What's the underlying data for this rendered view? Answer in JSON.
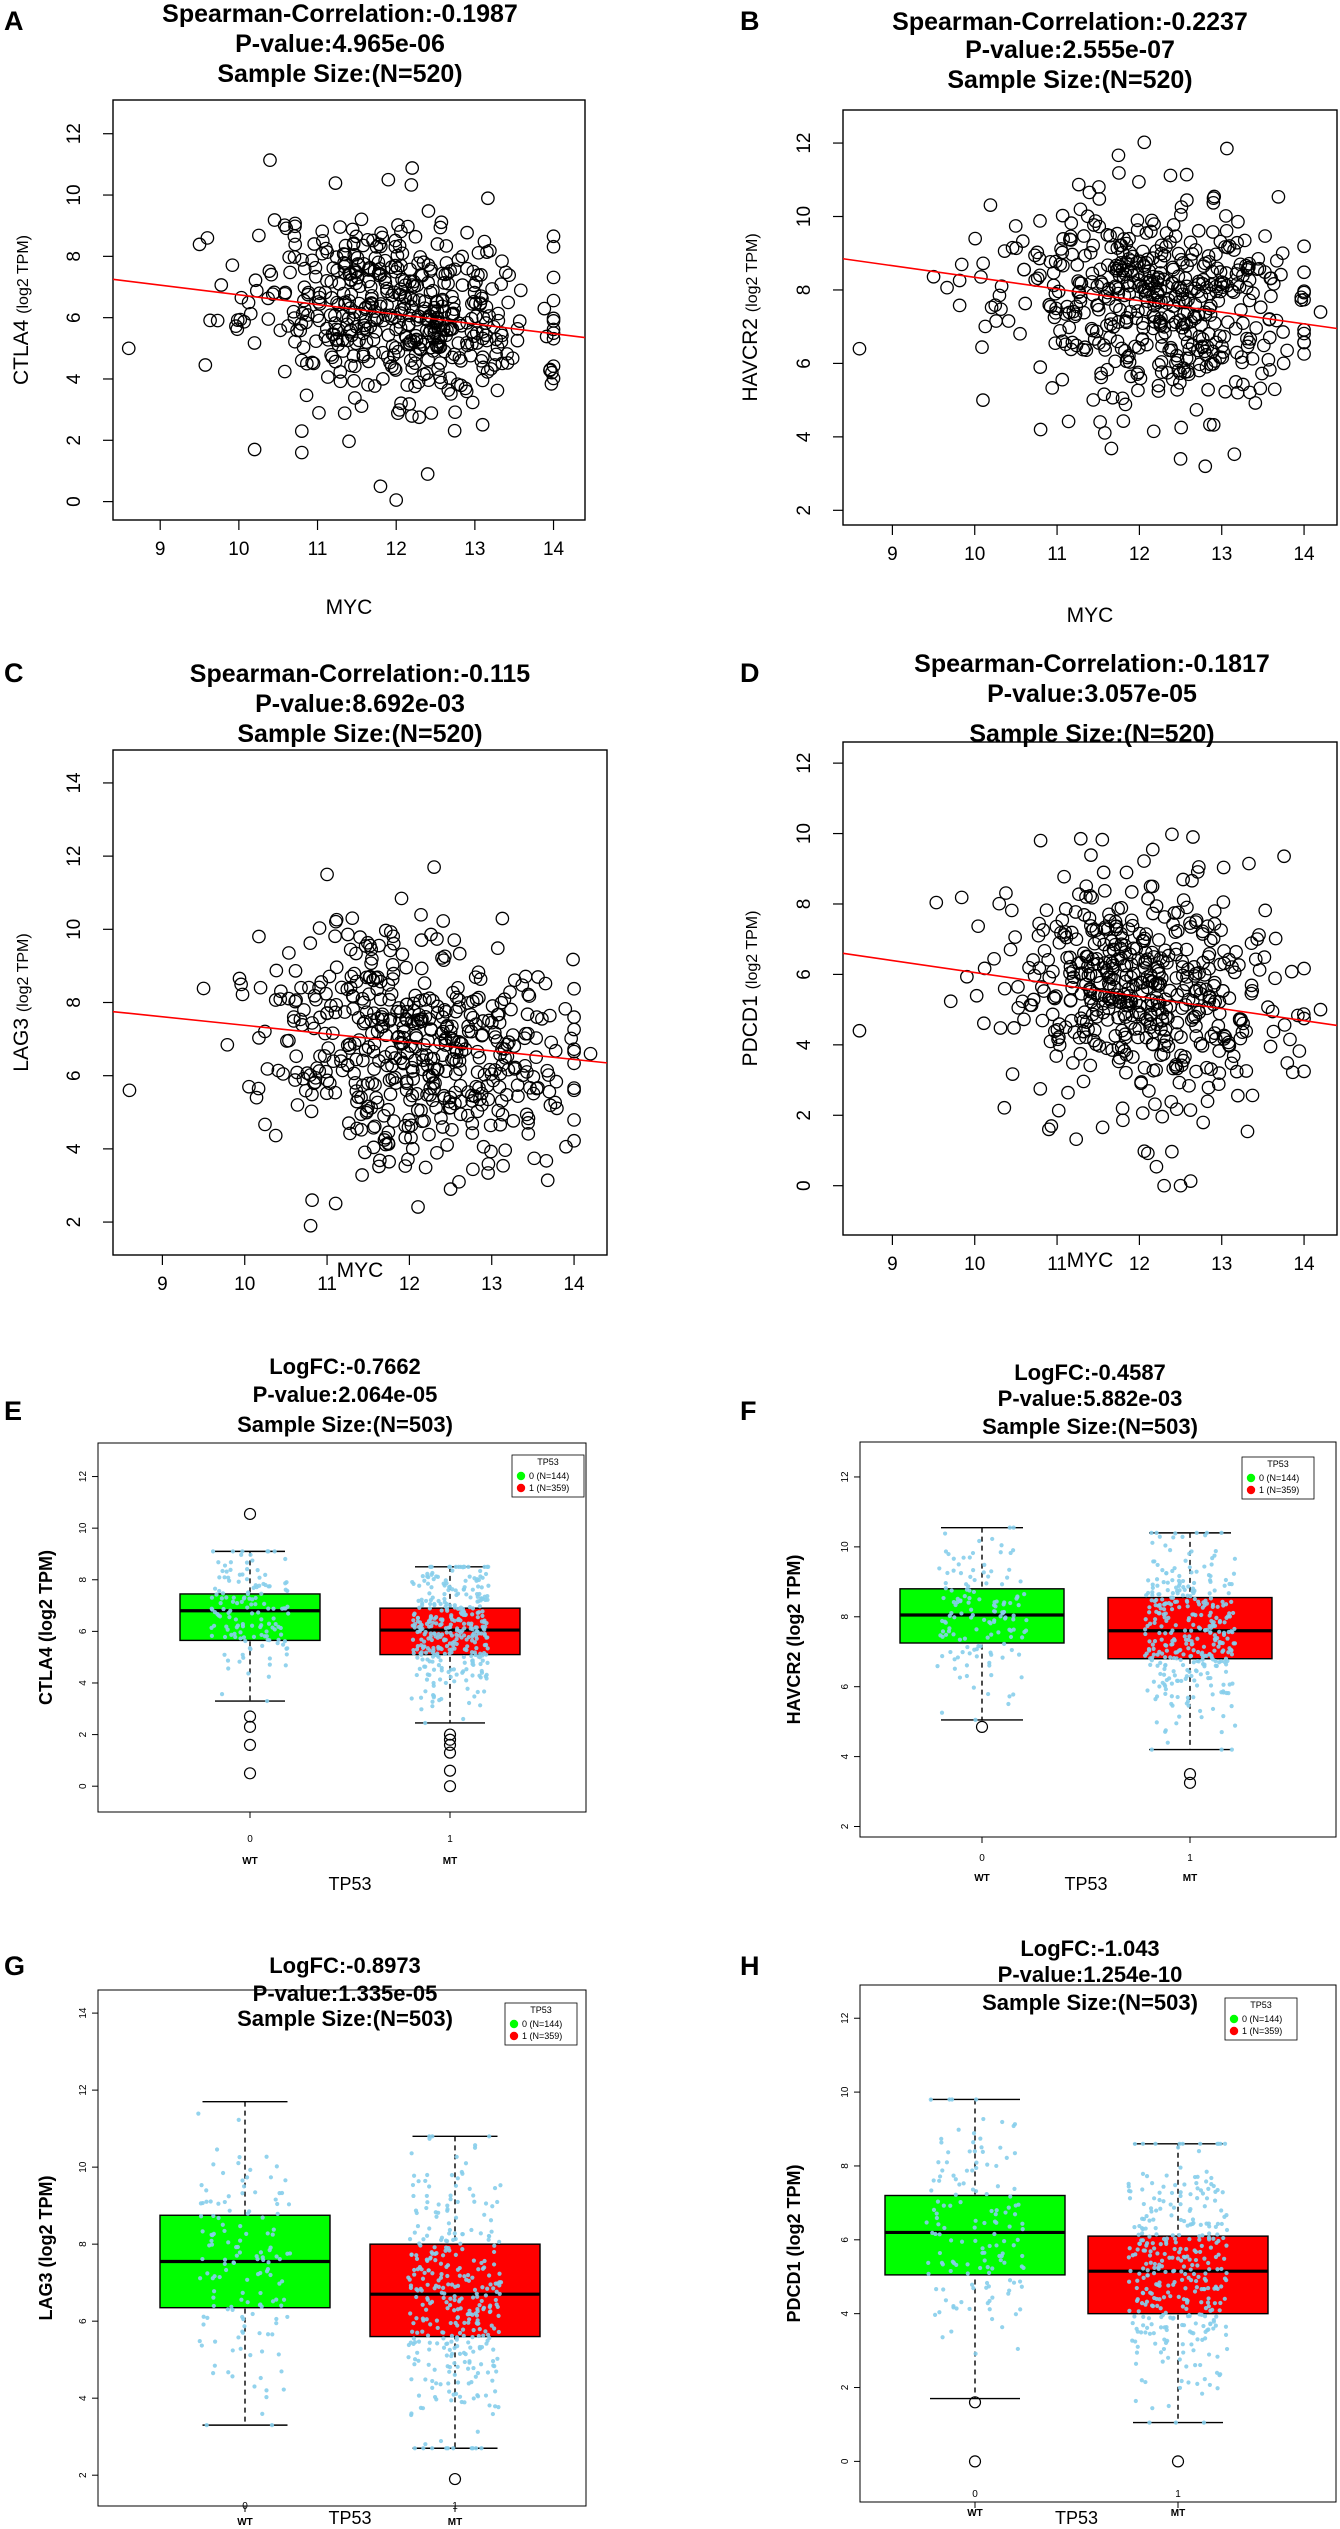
{
  "figure": {
    "scatter_common": {
      "xlabel": "MYC",
      "ylabel_suffix": "(log2 TPM)"
    },
    "box_common": {
      "xlabel": "TP53",
      "legend_title": "TP53",
      "legend_items": [
        "0 (N=144)",
        "1 (N=359)"
      ],
      "group_codes": [
        "0",
        "1"
      ],
      "group_names": [
        "WT",
        "MT"
      ]
    }
  },
  "chart_data": [
    {
      "type": "scatter",
      "panel": "A",
      "title_lines": [
        "Spearman-Correlation:-0.1987",
        "P-value:4.965e-06",
        "Sample Size:(N=520)"
      ],
      "xlabel": "MYC",
      "ylabel": "CTLA4",
      "xlim": [
        8.4,
        14.4
      ],
      "ylim": [
        -0.6,
        13.1
      ],
      "xticks": [
        9,
        10,
        11,
        12,
        13,
        14
      ],
      "yticks": [
        0,
        2,
        4,
        6,
        8,
        10,
        12
      ],
      "fit_line": [
        [
          8.4,
          7.25
        ],
        [
          14.4,
          5.35
        ]
      ],
      "point_cloud": {
        "n": 520,
        "x_mean": 12.0,
        "x_sd": 0.9,
        "y_mean": 6.3,
        "y_sd": 1.5,
        "seed": 11
      },
      "points": [
        [
          8.6,
          5.0
        ],
        [
          10.2,
          1.7
        ],
        [
          10.8,
          1.6
        ],
        [
          11.8,
          0.5
        ],
        [
          12.0,
          0.05
        ],
        [
          11.9,
          10.5
        ],
        [
          12.4,
          0.9
        ],
        [
          9.6,
          8.6
        ],
        [
          10.8,
          2.3
        ]
      ]
    },
    {
      "type": "scatter",
      "panel": "B",
      "title_lines": [
        "Spearman-Correlation:-0.2237",
        "P-value:2.555e-07",
        "Sample Size:(N=520)"
      ],
      "xlabel": "MYC",
      "ylabel": "HAVCR2",
      "xlim": [
        8.4,
        14.4
      ],
      "ylim": [
        1.6,
        12.9
      ],
      "xticks": [
        9,
        10,
        11,
        12,
        13,
        14
      ],
      "yticks": [
        2,
        4,
        6,
        8,
        10,
        12
      ],
      "fit_line": [
        [
          8.4,
          8.85
        ],
        [
          14.4,
          6.95
        ]
      ],
      "point_cloud": {
        "n": 520,
        "x_mean": 12.1,
        "x_sd": 0.9,
        "y_mean": 7.7,
        "y_sd": 1.4,
        "seed": 23
      },
      "points": [
        [
          8.6,
          6.4
        ],
        [
          10.8,
          4.2
        ],
        [
          12.5,
          3.4
        ],
        [
          12.8,
          3.2
        ],
        [
          12.9,
          10.5
        ],
        [
          14.2,
          7.4
        ],
        [
          10.1,
          5.0
        ]
      ]
    },
    {
      "type": "scatter",
      "panel": "C",
      "title_lines": [
        "Spearman-Correlation:-0.115",
        "P-value:8.692e-03",
        "Sample Size:(N=520)"
      ],
      "xlabel": "MYC",
      "ylabel": "LAG3",
      "xlim": [
        8.4,
        14.4
      ],
      "ylim": [
        1.1,
        14.9
      ],
      "xticks": [
        9,
        10,
        11,
        12,
        13,
        14
      ],
      "yticks": [
        2,
        4,
        6,
        8,
        10,
        12,
        14
      ],
      "fit_line": [
        [
          8.4,
          7.75
        ],
        [
          14.4,
          6.35
        ]
      ],
      "point_cloud": {
        "n": 520,
        "x_mean": 12.1,
        "x_sd": 0.9,
        "y_mean": 6.9,
        "y_sd": 1.6,
        "seed": 37
      },
      "points": [
        [
          8.6,
          5.6
        ],
        [
          10.8,
          1.9
        ],
        [
          12.3,
          11.7
        ],
        [
          11.0,
          11.5
        ],
        [
          14.2,
          6.6
        ],
        [
          12.5,
          2.9
        ]
      ]
    },
    {
      "type": "scatter",
      "panel": "D",
      "title_lines": [
        "Spearman-Correlation:-0.1817",
        "P-value:3.057e-05",
        "Sample Size:(N=520)"
      ],
      "xlabel": "MYC",
      "ylabel": "PDCD1",
      "xlim": [
        8.4,
        14.4
      ],
      "ylim": [
        -1.4,
        12.6
      ],
      "xticks": [
        9,
        10,
        11,
        12,
        13,
        14
      ],
      "yticks": [
        0,
        2,
        4,
        6,
        8,
        10,
        12
      ],
      "fit_line": [
        [
          8.4,
          6.6
        ],
        [
          14.4,
          4.55
        ]
      ],
      "point_cloud": {
        "n": 520,
        "x_mean": 12.1,
        "x_sd": 0.9,
        "y_mean": 5.4,
        "y_sd": 1.7,
        "seed": 53
      },
      "points": [
        [
          8.6,
          4.4
        ],
        [
          12.3,
          0.0
        ],
        [
          12.5,
          0.0
        ],
        [
          10.8,
          9.8
        ],
        [
          14.2,
          5.0
        ],
        [
          10.9,
          1.6
        ]
      ]
    },
    {
      "type": "box",
      "panel": "E",
      "title_lines": [
        "LogFC:-0.7662",
        "P-value:2.064e-05",
        "Sample Size:(N=503)"
      ],
      "xlabel": "TP53",
      "ylabel": "CTLA4 (log2 TPM)",
      "ylim": [
        -1,
        13.3
      ],
      "yticks": [
        0,
        2,
        4,
        6,
        8,
        10,
        12
      ],
      "groups": [
        {
          "code": "0",
          "name": "WT",
          "color": "#00ff00",
          "n": 144,
          "whisker_low": 3.3,
          "q1": 5.65,
          "median": 6.8,
          "q3": 7.45,
          "whisker_high": 9.1,
          "outliers": [
            10.55,
            2.7,
            2.3,
            1.6,
            0.5
          ]
        },
        {
          "code": "1",
          "name": "MT",
          "color": "#ff0000",
          "n": 359,
          "whisker_low": 2.45,
          "q1": 5.1,
          "median": 6.05,
          "q3": 6.9,
          "whisker_high": 8.5,
          "outliers": [
            2.0,
            1.8,
            1.6,
            1.3,
            0.6,
            0.0
          ]
        }
      ]
    },
    {
      "type": "box",
      "panel": "F",
      "title_lines": [
        "LogFC:-0.4587",
        "P-value:5.882e-03",
        "Sample Size:(N=503)"
      ],
      "xlabel": "TP53",
      "ylabel": "HAVCR2 (log2 TPM)",
      "ylim": [
        1.7,
        13.0
      ],
      "yticks": [
        2,
        4,
        6,
        8,
        10,
        12
      ],
      "groups": [
        {
          "code": "0",
          "name": "WT",
          "color": "#00ff00",
          "n": 144,
          "whisker_low": 5.05,
          "q1": 7.25,
          "median": 8.05,
          "q3": 8.8,
          "whisker_high": 10.55,
          "outliers": [
            4.85
          ]
        },
        {
          "code": "1",
          "name": "MT",
          "color": "#ff0000",
          "n": 359,
          "whisker_low": 4.2,
          "q1": 6.8,
          "median": 7.6,
          "q3": 8.55,
          "whisker_high": 10.4,
          "outliers": [
            3.5,
            3.25
          ]
        }
      ]
    },
    {
      "type": "box",
      "panel": "G",
      "title_lines": [
        "LogFC:-0.8973",
        "P-value:1.335e-05",
        "Sample Size:(N=503)"
      ],
      "xlabel": "TP53",
      "ylabel": "LAG3  (log2 TPM)",
      "ylim": [
        1.2,
        14.6
      ],
      "yticks": [
        2,
        4,
        6,
        8,
        10,
        12,
        14
      ],
      "groups": [
        {
          "code": "0",
          "name": "WT",
          "color": "#00ff00",
          "n": 144,
          "whisker_low": 3.3,
          "q1": 6.35,
          "median": 7.55,
          "q3": 8.75,
          "whisker_high": 11.7,
          "outliers": []
        },
        {
          "code": "1",
          "name": "MT",
          "color": "#ff0000",
          "n": 359,
          "whisker_low": 2.7,
          "q1": 5.6,
          "median": 6.7,
          "q3": 8.0,
          "whisker_high": 10.8,
          "outliers": [
            1.9
          ]
        }
      ]
    },
    {
      "type": "box",
      "panel": "H",
      "title_lines": [
        "LogFC:-1.043",
        "P-value:1.254e-10",
        "Sample Size:(N=503)"
      ],
      "xlabel": "TP53",
      "ylabel": "PDCD1  (log2 TPM)",
      "ylim": [
        -1.1,
        12.9
      ],
      "yticks": [
        0,
        2,
        4,
        6,
        8,
        10,
        12
      ],
      "groups": [
        {
          "code": "0",
          "name": "WT",
          "color": "#00ff00",
          "n": 144,
          "whisker_low": 1.7,
          "q1": 5.05,
          "median": 6.2,
          "q3": 7.2,
          "whisker_high": 9.8,
          "outliers": [
            1.6,
            0.0
          ]
        },
        {
          "code": "1",
          "name": "MT",
          "color": "#ff0000",
          "n": 359,
          "whisker_low": 1.05,
          "q1": 4.0,
          "median": 5.15,
          "q3": 6.1,
          "whisker_high": 8.6,
          "outliers": [
            0.0
          ]
        }
      ]
    }
  ]
}
